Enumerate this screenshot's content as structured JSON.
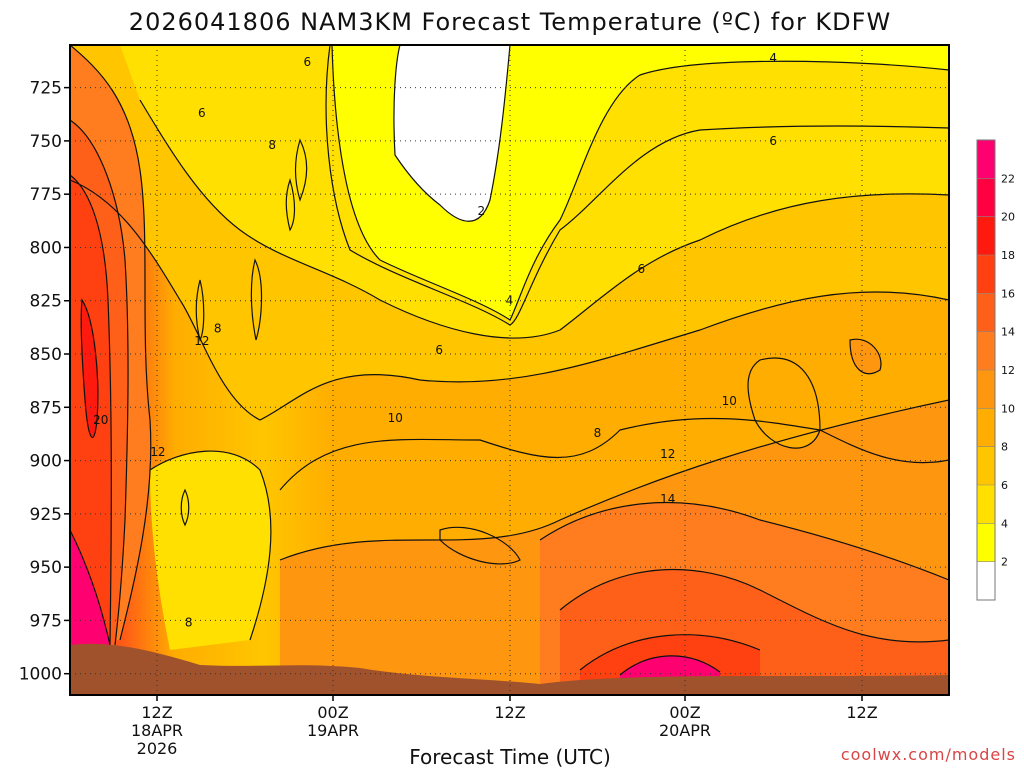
{
  "chart_data": {
    "type": "heatmap",
    "title": "2026041806 NAM3KM Forecast Temperature (ºC) for KDFW",
    "xlabel": "Forecast Time (UTC)",
    "ylabel": "",
    "credit": "coolwx.com/models",
    "y_axis": {
      "scale": "pressure",
      "range": [
        1010,
        705
      ],
      "inverted": true,
      "ticks": [
        "725",
        "750",
        "775",
        "800",
        "825",
        "850",
        "875",
        "900",
        "925",
        "950",
        "975",
        "1000"
      ],
      "grid": "dotted"
    },
    "x_axis": {
      "ticks": [
        {
          "label": "12Z",
          "sub1": "18APR",
          "sub2": "2026"
        },
        {
          "label": "00Z",
          "sub1": "19APR",
          "sub2": ""
        },
        {
          "label": "12Z",
          "sub1": "",
          "sub2": ""
        },
        {
          "label": "00Z",
          "sub1": "20APR",
          "sub2": ""
        },
        {
          "label": "12Z",
          "sub1": "",
          "sub2": ""
        }
      ],
      "grid": "dotted"
    },
    "colorbar": {
      "levels": [
        "2",
        "4",
        "6",
        "8",
        "10",
        "12",
        "14",
        "16",
        "18",
        "20",
        "22"
      ],
      "colors": [
        "#ffffff",
        "#ffff00",
        "#ffe000",
        "#ffc600",
        "#ffad00",
        "#ff9610",
        "#ff7d1e",
        "#ff6019",
        "#ff4010",
        "#ff1a10",
        "#ff0040",
        "#ff0070"
      ]
    },
    "contour_labels": [
      {
        "text": "6",
        "p": 737,
        "t": 0.15
      },
      {
        "text": "6",
        "p": 713,
        "t": 0.27
      },
      {
        "text": "8",
        "p": 752,
        "t": 0.23
      },
      {
        "text": "4",
        "p": 711,
        "t": 0.8
      },
      {
        "text": "6",
        "p": 750,
        "t": 0.8
      },
      {
        "text": "2",
        "p": 783,
        "t": 0.468
      },
      {
        "text": "4",
        "p": 825,
        "t": 0.5
      },
      {
        "text": "6",
        "p": 810,
        "t": 0.65
      },
      {
        "text": "6",
        "p": 848,
        "t": 0.42
      },
      {
        "text": "12",
        "p": 844,
        "t": 0.15
      },
      {
        "text": "8",
        "p": 838,
        "t": 0.168
      },
      {
        "text": "20",
        "p": 881,
        "t": 0.035
      },
      {
        "text": "12",
        "p": 896,
        "t": 0.1
      },
      {
        "text": "10",
        "p": 880,
        "t": 0.37
      },
      {
        "text": "8",
        "p": 887,
        "t": 0.6
      },
      {
        "text": "10",
        "p": 872,
        "t": 0.75
      },
      {
        "text": "12",
        "p": 897,
        "t": 0.68
      },
      {
        "text": "14",
        "p": 918,
        "t": 0.68
      },
      {
        "text": "8",
        "p": 976,
        "t": 0.135
      }
    ]
  }
}
